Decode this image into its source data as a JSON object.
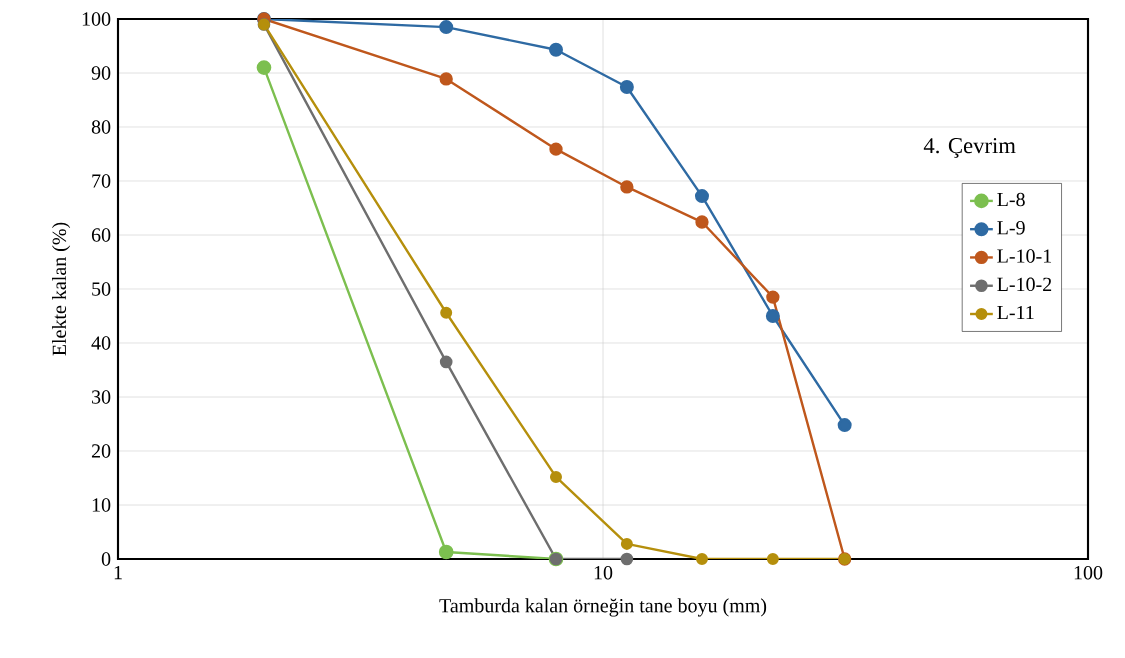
{
  "chart_data": {
    "type": "line",
    "xlabel": "Tamburda kalan örneğin tane boyu (mm)",
    "ylabel": "Elekte kalan (%)",
    "legend_title": "4. Çevrim",
    "x": [
      2,
      4.75,
      8,
      11.2,
      16,
      22.4,
      31.5
    ],
    "series": [
      {
        "name": "L-8",
        "color": "#7cbf4f",
        "values": [
          91,
          1.3,
          0,
          null,
          null,
          null,
          null
        ]
      },
      {
        "name": "L-9",
        "color": "#2e6aa3",
        "values": [
          100,
          98.5,
          94.3,
          87.4,
          67.2,
          45,
          24.8
        ]
      },
      {
        "name": "L-10-1",
        "color": "#bf571c",
        "values": [
          100,
          88.9,
          75.9,
          68.9,
          62.4,
          48.5,
          0
        ]
      },
      {
        "name": "L-10-2",
        "color": "#6e6e6e",
        "values": [
          99,
          36.5,
          0,
          0,
          null,
          null,
          null
        ]
      },
      {
        "name": "L-11",
        "color": "#b58f0c",
        "values": [
          99,
          45.6,
          15.2,
          2.8,
          0,
          0,
          0
        ]
      }
    ],
    "log": "x",
    "xlim": [
      1,
      100
    ],
    "xticks": [
      1,
      10,
      100
    ],
    "ylim": [
      0,
      100
    ],
    "yticks": [
      0,
      10,
      20,
      30,
      40,
      50,
      60,
      70,
      80,
      90,
      100
    ],
    "grid": true,
    "legend": "right",
    "marker": "circle",
    "line_style": "solid"
  }
}
